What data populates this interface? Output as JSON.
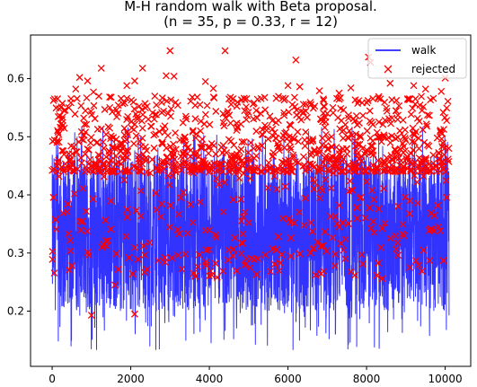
{
  "chart_data": {
    "type": "line",
    "title_lines": [
      "M-H random walk with Beta proposal.",
      "(n = 35, p = 0.33, r = 12)"
    ],
    "xlabel": "",
    "ylabel": "",
    "xlim": [
      -550,
      10650
    ],
    "ylim": [
      0.105,
      0.675
    ],
    "x_ticks": [
      0,
      2000,
      4000,
      6000,
      8000,
      10000
    ],
    "x_tick_labels": [
      "0",
      "2000",
      "4000",
      "6000",
      "8000",
      "10000"
    ],
    "y_ticks": [
      0.2,
      0.3,
      0.4,
      0.5,
      0.6
    ],
    "y_tick_labels": [
      "0.2",
      "0.3",
      "0.4",
      "0.5",
      "0.6"
    ],
    "grid": false,
    "legend_position": "top-right",
    "series": [
      {
        "name": "walk",
        "kind": "line",
        "color": "#0000ff",
        "approx_range": {
          "x": [
            0,
            10100
          ],
          "y_typical": [
            0.2,
            0.47
          ],
          "y_min": 0.13,
          "y_max": 0.52
        },
        "values": [
          [
            0,
            0.3
          ],
          [
            200,
            0.41
          ],
          [
            400,
            0.22
          ],
          [
            600,
            0.38
          ],
          [
            800,
            0.27
          ],
          [
            1000,
            0.44
          ],
          [
            1200,
            0.31
          ],
          [
            1400,
            0.2
          ],
          [
            1600,
            0.36
          ],
          [
            1800,
            0.42
          ],
          [
            2000,
            0.26
          ],
          [
            2200,
            0.39
          ],
          [
            2400,
            0.33
          ],
          [
            2600,
            0.19
          ],
          [
            2800,
            0.43
          ],
          [
            3000,
            0.29
          ],
          [
            3200,
            0.37
          ],
          [
            3400,
            0.15
          ],
          [
            3600,
            0.4
          ],
          [
            3800,
            0.28
          ],
          [
            4000,
            0.45
          ],
          [
            4200,
            0.24
          ],
          [
            4400,
            0.35
          ],
          [
            4600,
            0.41
          ],
          [
            4800,
            0.22
          ],
          [
            5000,
            0.38
          ],
          [
            5200,
            0.3
          ],
          [
            5400,
            0.44
          ],
          [
            5600,
            0.26
          ],
          [
            5800,
            0.34
          ],
          [
            6000,
            0.4
          ],
          [
            6200,
            0.21
          ],
          [
            6400,
            0.37
          ],
          [
            6600,
            0.43
          ],
          [
            6800,
            0.27
          ],
          [
            7000,
            0.32
          ],
          [
            7200,
            0.39
          ],
          [
            7400,
            0.24
          ],
          [
            7600,
            0.41
          ],
          [
            7800,
            0.29
          ],
          [
            8000,
            0.36
          ],
          [
            8200,
            0.18
          ],
          [
            8400,
            0.42
          ],
          [
            8600,
            0.31
          ],
          [
            8800,
            0.25
          ],
          [
            9000,
            0.38
          ],
          [
            9200,
            0.45
          ],
          [
            9400,
            0.23
          ],
          [
            9600,
            0.35
          ],
          [
            9800,
            0.3
          ],
          [
            10000,
            0.4
          ],
          [
            10100,
            0.28
          ]
        ]
      },
      {
        "name": "rejected",
        "kind": "scatter",
        "marker": "x",
        "color": "#ff0000",
        "approx_range": {
          "x": [
            0,
            10100
          ],
          "y_typical": [
            0.44,
            0.57
          ],
          "y_min": 0.19,
          "y_max": 0.65
        },
        "values": [
          [
            3000,
            0.648
          ],
          [
            4400,
            0.648
          ],
          [
            6200,
            0.632
          ],
          [
            8050,
            0.637
          ],
          [
            8100,
            0.628
          ],
          [
            1250,
            0.618
          ],
          [
            2300,
            0.618
          ],
          [
            2900,
            0.605
          ],
          [
            3100,
            0.604
          ],
          [
            700,
            0.602
          ],
          [
            900,
            0.596
          ],
          [
            1900,
            0.588
          ],
          [
            2100,
            0.596
          ],
          [
            3900,
            0.595
          ],
          [
            4100,
            0.583
          ],
          [
            6000,
            0.588
          ],
          [
            6300,
            0.586
          ],
          [
            7600,
            0.584
          ],
          [
            8600,
            0.592
          ],
          [
            9200,
            0.588
          ],
          [
            9500,
            0.582
          ],
          [
            10000,
            0.601
          ],
          [
            600,
            0.582
          ],
          [
            1050,
            0.577
          ],
          [
            6800,
            0.579
          ],
          [
            7300,
            0.575
          ],
          [
            9900,
            0.578
          ],
          [
            1500,
            0.568
          ],
          [
            1900,
            0.566
          ],
          [
            4500,
            0.565
          ],
          [
            5700,
            0.566
          ],
          [
            6900,
            0.565
          ],
          [
            7800,
            0.562
          ],
          [
            8300,
            0.566
          ],
          [
            9050,
            0.564
          ],
          [
            9700,
            0.566
          ],
          [
            60,
            0.565
          ],
          [
            10070,
            0.561
          ],
          [
            300,
            0.545
          ],
          [
            7000,
            0.54
          ],
          [
            2650,
            0.538
          ],
          [
            4900,
            0.545
          ],
          [
            5300,
            0.54
          ],
          [
            3400,
            0.535
          ],
          [
            8800,
            0.537
          ],
          [
            1000,
            0.193
          ],
          [
            2100,
            0.195
          ],
          [
            2350,
            0.267
          ],
          [
            1600,
            0.245
          ],
          [
            5200,
            0.263
          ],
          [
            4200,
            0.258
          ],
          [
            3600,
            0.265
          ],
          [
            7600,
            0.268
          ],
          [
            8400,
            0.256
          ],
          [
            9100,
            0.275
          ],
          [
            6700,
            0.262
          ],
          [
            500,
            0.278
          ],
          [
            9600,
            0.287
          ],
          [
            3200,
            0.296
          ],
          [
            5800,
            0.283
          ],
          [
            7200,
            0.298
          ],
          [
            2700,
            0.287
          ],
          [
            8800,
            0.296
          ]
        ]
      }
    ]
  }
}
